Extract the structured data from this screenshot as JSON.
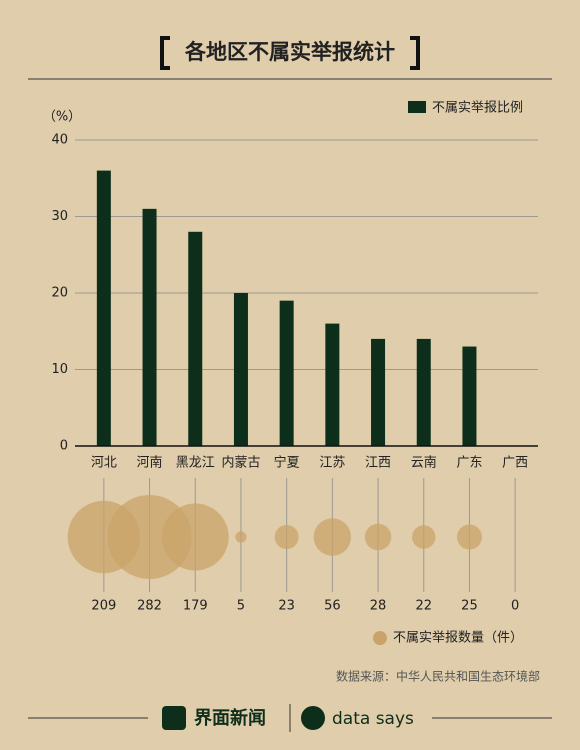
{
  "chart_data": [
    {
      "type": "bar",
      "title": "各地区不属实举报统计",
      "y_label": "（%）",
      "categories": [
        "河北",
        "河南",
        "黑龙江",
        "内蒙古",
        "宁夏",
        "江苏",
        "江西",
        "云南",
        "广东",
        "广西"
      ],
      "series": [
        {
          "name": "不属实举报比例",
          "color": "#0d2e1a",
          "values": [
            36,
            31,
            28,
            20,
            19,
            16,
            14,
            14,
            13,
            0
          ]
        }
      ],
      "ylim": [
        0,
        40
      ],
      "yticks": [
        0,
        10,
        20,
        30,
        40
      ],
      "grid": true,
      "legend": "top-right"
    },
    {
      "type": "bubble",
      "series": [
        {
          "name": "不属实举报数量（件）",
          "color": "#c9a36a",
          "values": [
            209,
            282,
            179,
            5,
            23,
            56,
            28,
            22,
            25,
            0
          ]
        }
      ]
    }
  ],
  "source": "数据来源：中华人民共和国生态环境部",
  "footer": {
    "brand": "界面新闻",
    "partner": "data says"
  }
}
